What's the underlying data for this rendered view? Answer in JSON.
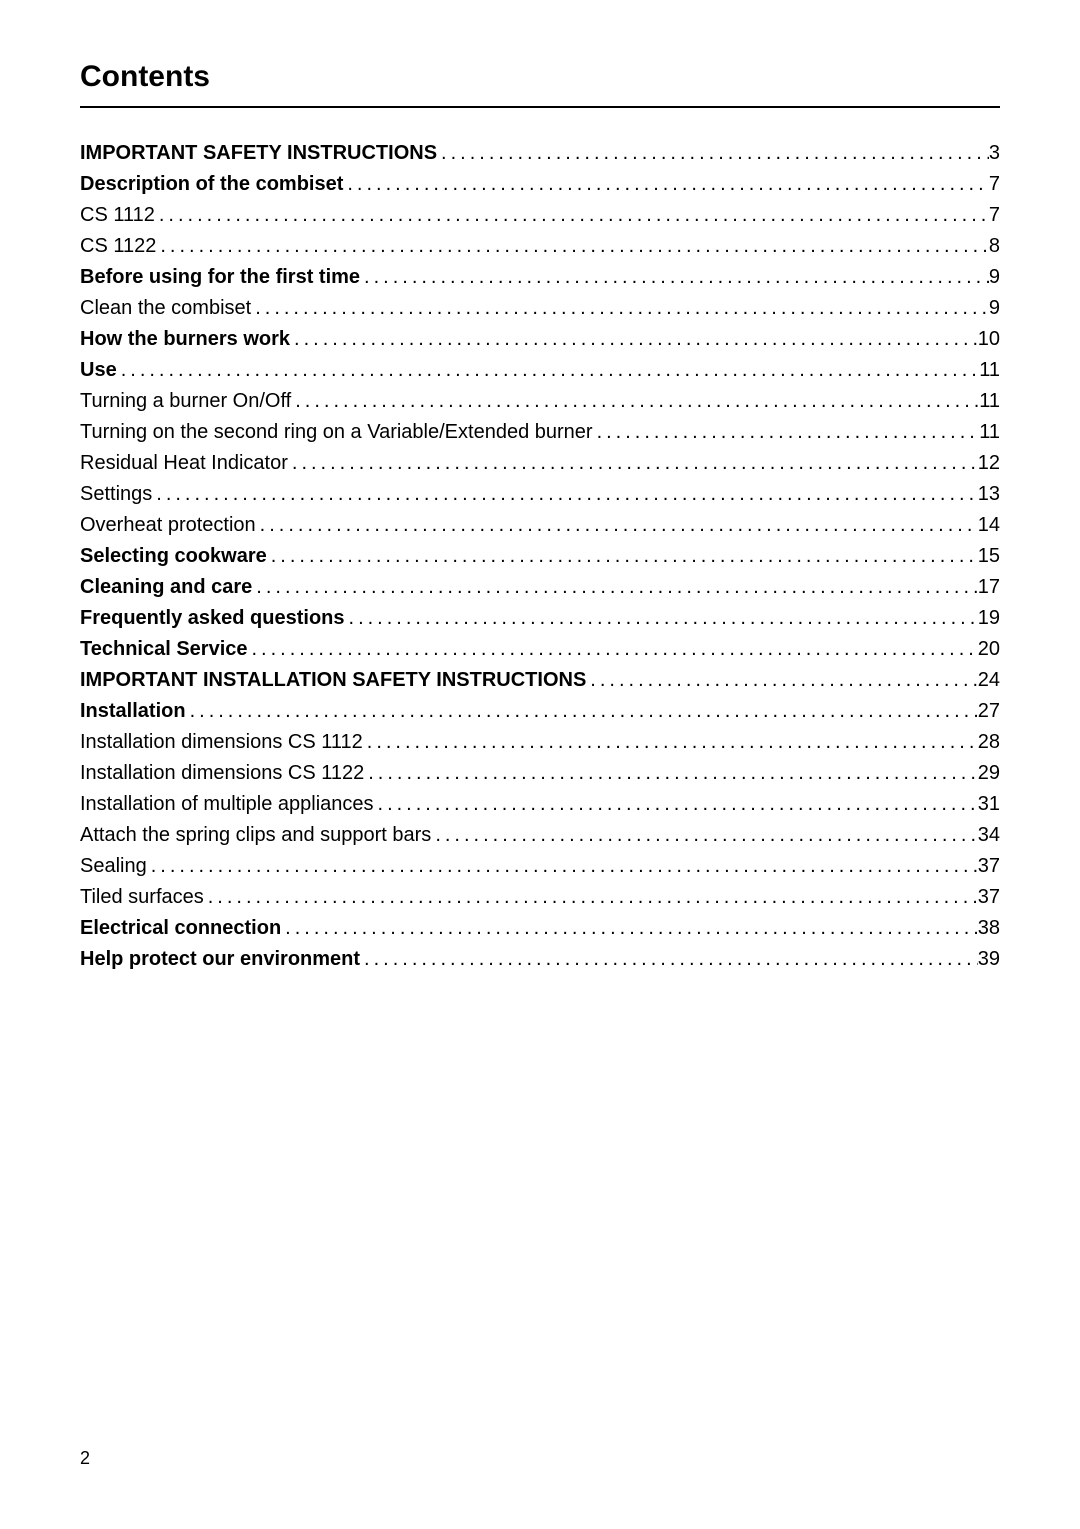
{
  "title": "Contents",
  "pageNumber": "2",
  "toc": [
    {
      "label": "IMPORTANT SAFETY INSTRUCTIONS",
      "page": "3",
      "bold": true
    },
    {
      "label": "Description of the combiset",
      "page": "7",
      "bold": true
    },
    {
      "label": "CS 1112",
      "page": "7",
      "bold": false
    },
    {
      "label": "CS 1122",
      "page": "8",
      "bold": false
    },
    {
      "label": "Before using for the first time",
      "page": "9",
      "bold": true
    },
    {
      "label": "Clean the combiset",
      "page": "9",
      "bold": false
    },
    {
      "label": "How the burners work",
      "page": "10",
      "bold": true
    },
    {
      "label": "Use",
      "page": "11",
      "bold": true
    },
    {
      "label": "Turning a burner On/Off",
      "page": "11",
      "bold": false
    },
    {
      "label": "Turning on the second ring on a Variable/Extended burner",
      "page": "11",
      "bold": false
    },
    {
      "label": "Residual Heat Indicator",
      "page": "12",
      "bold": false
    },
    {
      "label": "Settings",
      "page": "13",
      "bold": false
    },
    {
      "label": "Overheat protection",
      "page": "14",
      "bold": false
    },
    {
      "label": "Selecting cookware",
      "page": "15",
      "bold": true
    },
    {
      "label": "Cleaning and care",
      "page": "17",
      "bold": true
    },
    {
      "label": "Frequently asked questions",
      "page": "19",
      "bold": true
    },
    {
      "label": "Technical Service",
      "page": "20",
      "bold": true
    },
    {
      "label": "IMPORTANT INSTALLATION SAFETY INSTRUCTIONS",
      "page": "24",
      "bold": true
    },
    {
      "label": "Installation",
      "page": "27",
      "bold": true
    },
    {
      "label": "Installation dimensions CS 1112",
      "page": "28",
      "bold": false
    },
    {
      "label": "Installation dimensions CS 1122",
      "page": "29",
      "bold": false
    },
    {
      "label": "Installation of multiple appliances",
      "page": "31",
      "bold": false
    },
    {
      "label": "Attach the spring clips and support bars",
      "page": "34",
      "bold": false
    },
    {
      "label": "Sealing",
      "page": "37",
      "bold": false
    },
    {
      "label": "Tiled surfaces",
      "page": "37",
      "bold": false
    },
    {
      "label": "Electrical connection",
      "page": "38",
      "bold": true
    },
    {
      "label": "Help protect our environment",
      "page": "39",
      "bold": true
    }
  ]
}
